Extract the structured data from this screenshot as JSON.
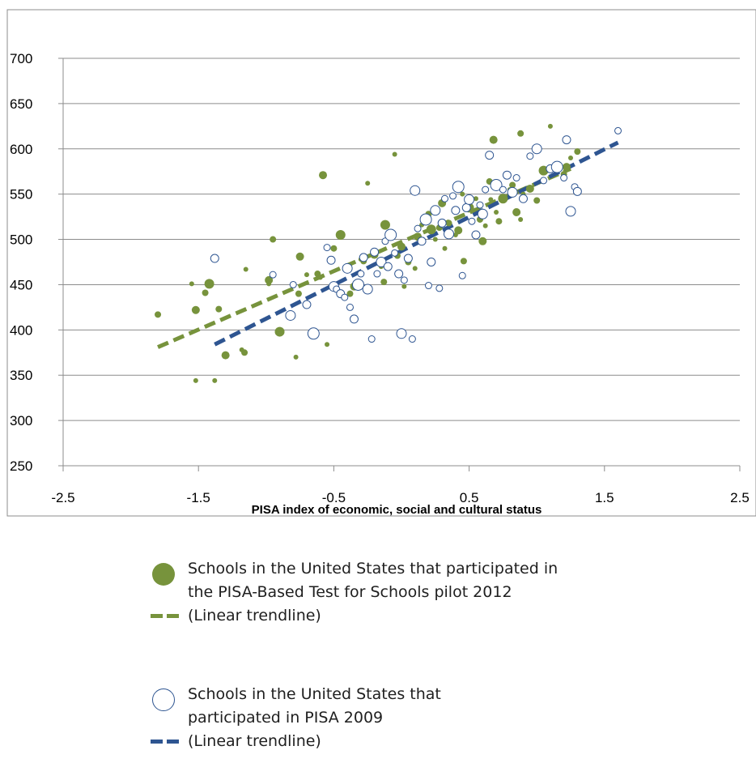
{
  "chart_data": {
    "type": "scatter",
    "title": "",
    "xlabel": "PISA index of economic, social and cultural status",
    "ylabel": "",
    "xlim": [
      -2.5,
      2.5
    ],
    "ylim": [
      250,
      700
    ],
    "x_ticks": [
      "-2.5",
      "-1.5",
      "-0.5",
      "0.5",
      "1.5",
      "2.5"
    ],
    "y_ticks": [
      "250",
      "300",
      "350",
      "400",
      "450",
      "500",
      "550",
      "600",
      "650",
      "700"
    ],
    "grid": "horizontal",
    "colors": {
      "pilot": "#77933c",
      "pisa2009": "#2e5591",
      "grid": "#8c8c8c"
    },
    "series": [
      {
        "key": "pilot",
        "name": "Schools in the United States that participated in the PISA-Based Test for Schools pilot 2012",
        "marker": "filled-circle",
        "color": "#77933c",
        "points": [
          [
            -1.8,
            417
          ],
          [
            -1.55,
            451
          ],
          [
            -1.52,
            422
          ],
          [
            -1.52,
            344
          ],
          [
            -1.45,
            441
          ],
          [
            -1.42,
            451
          ],
          [
            -1.38,
            344
          ],
          [
            -1.35,
            423
          ],
          [
            -1.3,
            372
          ],
          [
            -1.18,
            378
          ],
          [
            -1.16,
            375
          ],
          [
            -1.15,
            467
          ],
          [
            -0.98,
            455
          ],
          [
            -0.98,
            451
          ],
          [
            -0.95,
            500
          ],
          [
            -0.9,
            398
          ],
          [
            -0.78,
            370
          ],
          [
            -0.76,
            440
          ],
          [
            -0.75,
            481
          ],
          [
            -0.7,
            461
          ],
          [
            -0.62,
            462
          ],
          [
            -0.6,
            458
          ],
          [
            -0.58,
            571
          ],
          [
            -0.55,
            384
          ],
          [
            -0.5,
            490
          ],
          [
            -0.45,
            505
          ],
          [
            -0.42,
            467
          ],
          [
            -0.38,
            440
          ],
          [
            -0.35,
            448
          ],
          [
            -0.3,
            478
          ],
          [
            -0.28,
            476
          ],
          [
            -0.25,
            562
          ],
          [
            -0.2,
            483
          ],
          [
            -0.15,
            470
          ],
          [
            -0.13,
            453
          ],
          [
            -0.12,
            516
          ],
          [
            -0.05,
            594
          ],
          [
            -0.03,
            482
          ],
          [
            0,
            492
          ],
          [
            0.02,
            448
          ],
          [
            0.05,
            475
          ],
          [
            0.1,
            468
          ],
          [
            0.12,
            503
          ],
          [
            0.15,
            516
          ],
          [
            0.2,
            528
          ],
          [
            0.22,
            511
          ],
          [
            0.25,
            500
          ],
          [
            0.28,
            513
          ],
          [
            0.3,
            540
          ],
          [
            0.32,
            490
          ],
          [
            0.35,
            518
          ],
          [
            0.4,
            505
          ],
          [
            0.42,
            510
          ],
          [
            0.45,
            550
          ],
          [
            0.46,
            476
          ],
          [
            0.5,
            535
          ],
          [
            0.55,
            545
          ],
          [
            0.58,
            522
          ],
          [
            0.6,
            498
          ],
          [
            0.62,
            515
          ],
          [
            0.65,
            564
          ],
          [
            0.66,
            544
          ],
          [
            0.68,
            610
          ],
          [
            0.7,
            530
          ],
          [
            0.72,
            520
          ],
          [
            0.75,
            545
          ],
          [
            0.8,
            555
          ],
          [
            0.82,
            560
          ],
          [
            0.85,
            530
          ],
          [
            0.88,
            522
          ],
          [
            0.88,
            617
          ],
          [
            0.9,
            550
          ],
          [
            0.95,
            556
          ],
          [
            0.98,
            600
          ],
          [
            1.0,
            543
          ],
          [
            1.05,
            576
          ],
          [
            1.1,
            625
          ],
          [
            1.2,
            572
          ],
          [
            1.22,
            580
          ],
          [
            1.25,
            590
          ],
          [
            1.3,
            597
          ]
        ]
      },
      {
        "key": "pisa2009",
        "name": "Schools in the United States that participated in PISA 2009",
        "marker": "hollow-circle",
        "color": "#2e5591",
        "points": [
          [
            -1.38,
            479
          ],
          [
            -0.95,
            461
          ],
          [
            -0.82,
            416
          ],
          [
            -0.8,
            450
          ],
          [
            -0.7,
            428
          ],
          [
            -0.65,
            396
          ],
          [
            -0.55,
            491
          ],
          [
            -0.52,
            477
          ],
          [
            -0.5,
            448
          ],
          [
            -0.48,
            445
          ],
          [
            -0.45,
            440
          ],
          [
            -0.42,
            436
          ],
          [
            -0.4,
            468
          ],
          [
            -0.38,
            425
          ],
          [
            -0.35,
            412
          ],
          [
            -0.32,
            450
          ],
          [
            -0.3,
            462
          ],
          [
            -0.28,
            480
          ],
          [
            -0.25,
            445
          ],
          [
            -0.22,
            390
          ],
          [
            -0.2,
            486
          ],
          [
            -0.18,
            462
          ],
          [
            -0.15,
            475
          ],
          [
            -0.12,
            498
          ],
          [
            -0.1,
            470
          ],
          [
            -0.08,
            505
          ],
          [
            -0.05,
            485
          ],
          [
            -0.02,
            462
          ],
          [
            0,
            396
          ],
          [
            0.02,
            455
          ],
          [
            0.05,
            479
          ],
          [
            0.08,
            390
          ],
          [
            0.1,
            554
          ],
          [
            0.12,
            512
          ],
          [
            0.15,
            498
          ],
          [
            0.18,
            522
          ],
          [
            0.2,
            449
          ],
          [
            0.22,
            475
          ],
          [
            0.25,
            532
          ],
          [
            0.28,
            446
          ],
          [
            0.3,
            518
          ],
          [
            0.32,
            545
          ],
          [
            0.35,
            506
          ],
          [
            0.38,
            548
          ],
          [
            0.4,
            532
          ],
          [
            0.42,
            558
          ],
          [
            0.45,
            460
          ],
          [
            0.48,
            535
          ],
          [
            0.5,
            544
          ],
          [
            0.52,
            520
          ],
          [
            0.55,
            505
          ],
          [
            0.58,
            538
          ],
          [
            0.6,
            528
          ],
          [
            0.62,
            555
          ],
          [
            0.65,
            593
          ],
          [
            0.7,
            560
          ],
          [
            0.75,
            555
          ],
          [
            0.78,
            571
          ],
          [
            0.82,
            552
          ],
          [
            0.85,
            568
          ],
          [
            0.9,
            545
          ],
          [
            0.95,
            592
          ],
          [
            1.0,
            600
          ],
          [
            1.05,
            565
          ],
          [
            1.1,
            578
          ],
          [
            1.15,
            580
          ],
          [
            1.2,
            568
          ],
          [
            1.22,
            610
          ],
          [
            1.25,
            531
          ],
          [
            1.28,
            558
          ],
          [
            1.3,
            553
          ],
          [
            1.6,
            620
          ]
        ]
      }
    ],
    "trendlines": [
      {
        "series": "pilot",
        "color": "#77933c",
        "x": [
          -1.8,
          1.25
        ],
        "y": [
          381,
          578
        ]
      },
      {
        "series": "pisa2009",
        "color": "#2e5591",
        "x": [
          -1.38,
          1.6
        ],
        "y": [
          384,
          607
        ]
      }
    ],
    "legend": {
      "position": "bottom",
      "items": [
        {
          "marker": "filled-circle",
          "label_line1": "Schools in the United States that participated in",
          "label_line2": "the PISA-Based Test for Schools pilot 2012"
        },
        {
          "marker": "green-dash",
          "label_line1": "(Linear trendline)"
        },
        {
          "marker": "hollow-circle",
          "label_line1": "Schools in the United States that",
          "label_line2": "participated in PISA 2009"
        },
        {
          "marker": "blue-dash",
          "label_line1": "(Linear trendline)"
        }
      ]
    }
  }
}
